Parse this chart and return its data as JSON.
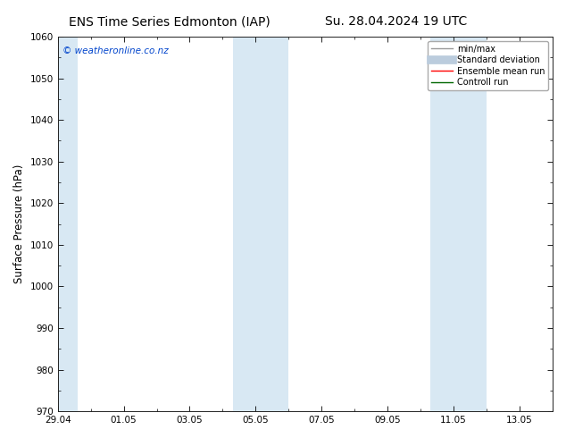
{
  "title_left": "ENS Time Series Edmonton (IAP)",
  "title_right": "Su. 28.04.2024 19 UTC",
  "ylabel": "Surface Pressure (hPa)",
  "ylim": [
    970,
    1060
  ],
  "yticks": [
    970,
    980,
    990,
    1000,
    1010,
    1020,
    1030,
    1040,
    1050,
    1060
  ],
  "xlim": [
    0,
    15
  ],
  "xtick_labels": [
    "29.04",
    "01.05",
    "03.05",
    "05.05",
    "07.05",
    "09.05",
    "11.05",
    "13.05"
  ],
  "xtick_positions": [
    0,
    2,
    4,
    6,
    8,
    10,
    12,
    14
  ],
  "shaded_regions": [
    {
      "start": 0.0,
      "end": 0.6,
      "color": "#d8e8f3"
    },
    {
      "start": 5.3,
      "end": 6.0,
      "color": "#d8e8f3"
    },
    {
      "start": 6.0,
      "end": 7.0,
      "color": "#d8e8f3"
    },
    {
      "start": 11.3,
      "end": 12.0,
      "color": "#d8e8f3"
    },
    {
      "start": 12.0,
      "end": 13.0,
      "color": "#d8e8f3"
    }
  ],
  "watermark": "© weatheronline.co.nz",
  "watermark_color": "#0044cc",
  "background_color": "#ffffff",
  "plot_bg_color": "#ffffff",
  "legend_items": [
    {
      "label": "min/max",
      "color": "#999999",
      "lw": 1.0,
      "style": "line"
    },
    {
      "label": "Standard deviation",
      "color": "#bbccdd",
      "lw": 7,
      "style": "band"
    },
    {
      "label": "Ensemble mean run",
      "color": "#ff0000",
      "lw": 1.0,
      "style": "line"
    },
    {
      "label": "Controll run",
      "color": "#006600",
      "lw": 1.0,
      "style": "line"
    }
  ],
  "title_fontsize": 10,
  "tick_fontsize": 7.5,
  "label_fontsize": 8.5,
  "watermark_fontsize": 7.5
}
